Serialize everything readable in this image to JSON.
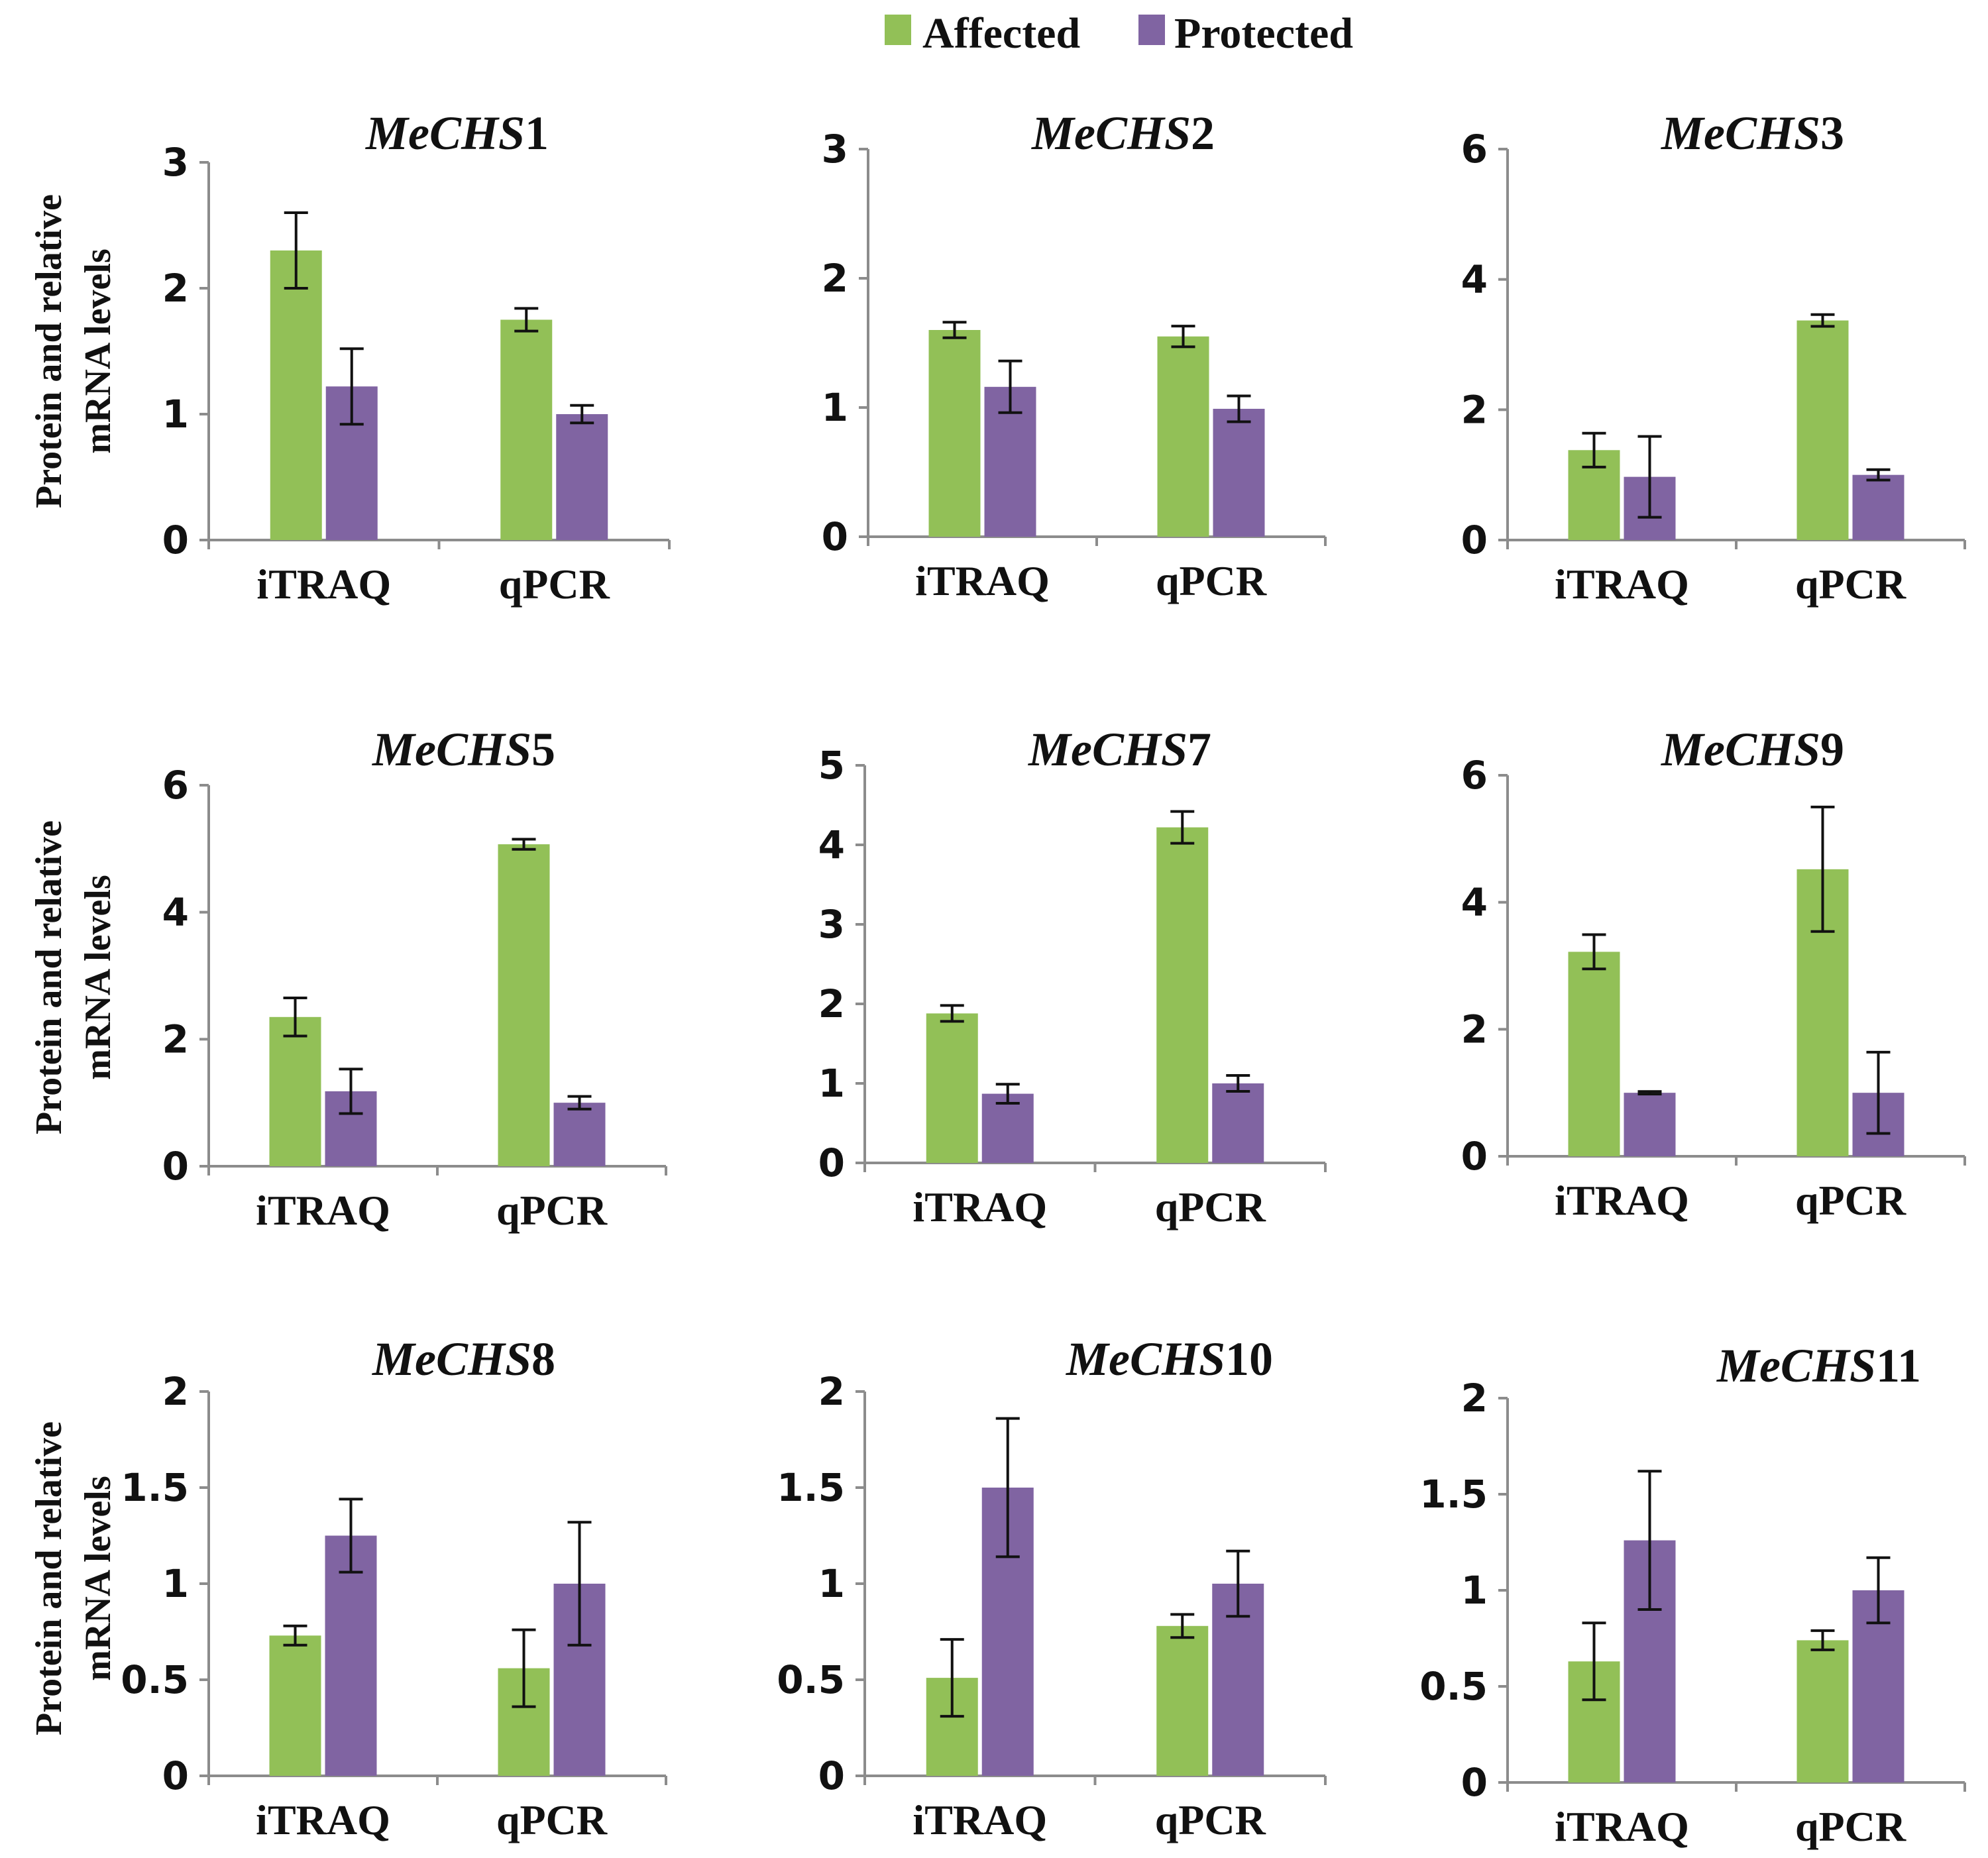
{
  "colors": {
    "affected": "#92c057",
    "protected": "#8064a2"
  },
  "legend": {
    "affected": "Affected",
    "protected": "Protected"
  },
  "ylabel": {
    "line1": "Protein  and relative",
    "line2": "mRNA levels"
  },
  "chart_data": [
    {
      "type": "bar",
      "title_italic": "MeCHS",
      "title_num": "1",
      "categories": [
        "iTRAQ",
        "qPCR"
      ],
      "ylim": [
        0,
        3
      ],
      "yticks": [
        "0",
        "1",
        "2",
        "3"
      ],
      "ytick_values": [
        0,
        1,
        2,
        3
      ],
      "series": [
        {
          "name": "Affected",
          "values": [
            2.3,
            1.75
          ],
          "errors": [
            0.3,
            0.09
          ]
        },
        {
          "name": "Protected",
          "values": [
            1.22,
            1.0
          ],
          "errors": [
            0.3,
            0.07
          ]
        }
      ]
    },
    {
      "type": "bar",
      "title_italic": "MeCHS",
      "title_num": "2",
      "categories": [
        "iTRAQ",
        "qPCR"
      ],
      "ylim": [
        0,
        3
      ],
      "yticks": [
        "0",
        "1",
        "2",
        "3"
      ],
      "ytick_values": [
        0,
        1,
        2,
        3
      ],
      "series": [
        {
          "name": "Affected",
          "values": [
            1.6,
            1.55
          ],
          "errors": [
            0.06,
            0.08
          ]
        },
        {
          "name": "Protected",
          "values": [
            1.16,
            0.99
          ],
          "errors": [
            0.2,
            0.1
          ]
        }
      ]
    },
    {
      "type": "bar",
      "title_italic": "MeCHS",
      "title_num": "3",
      "categories": [
        "iTRAQ",
        "qPCR"
      ],
      "ylim": [
        0,
        6
      ],
      "yticks": [
        "0",
        "2",
        "4",
        "6"
      ],
      "ytick_values": [
        0,
        2,
        4,
        6
      ],
      "series": [
        {
          "name": "Affected",
          "values": [
            1.38,
            3.37
          ],
          "errors": [
            0.26,
            0.09
          ]
        },
        {
          "name": "Protected",
          "values": [
            0.97,
            1.0
          ],
          "errors": [
            0.62,
            0.08
          ]
        }
      ]
    },
    {
      "type": "bar",
      "title_italic": "MeCHS",
      "title_num": "5",
      "categories": [
        "iTRAQ",
        "qPCR"
      ],
      "ylim": [
        0,
        6
      ],
      "yticks": [
        "0",
        "2",
        "4",
        "6"
      ],
      "ytick_values": [
        0,
        2,
        4,
        6
      ],
      "series": [
        {
          "name": "Affected",
          "values": [
            2.35,
            5.07
          ],
          "errors": [
            0.3,
            0.08
          ]
        },
        {
          "name": "Protected",
          "values": [
            1.18,
            1.0
          ],
          "errors": [
            0.35,
            0.1
          ]
        }
      ]
    },
    {
      "type": "bar",
      "title_italic": "MeCHS",
      "title_num": "7",
      "categories": [
        "iTRAQ",
        "qPCR"
      ],
      "ylim": [
        0,
        5
      ],
      "yticks": [
        "0",
        "1",
        "2",
        "3",
        "4",
        "5"
      ],
      "ytick_values": [
        0,
        1,
        2,
        3,
        4,
        5
      ],
      "series": [
        {
          "name": "Affected",
          "values": [
            1.88,
            4.22
          ],
          "errors": [
            0.1,
            0.2
          ]
        },
        {
          "name": "Protected",
          "values": [
            0.87,
            1.0
          ],
          "errors": [
            0.12,
            0.1
          ]
        }
      ]
    },
    {
      "type": "bar",
      "title_italic": "MeCHS",
      "title_num": "9",
      "categories": [
        "iTRAQ",
        "qPCR"
      ],
      "ylim": [
        0,
        6
      ],
      "yticks": [
        "0",
        "2",
        "4",
        "6"
      ],
      "ytick_values": [
        0,
        2,
        4,
        6
      ],
      "series": [
        {
          "name": "Affected",
          "values": [
            3.22,
            4.52
          ],
          "errors": [
            0.27,
            0.98
          ]
        },
        {
          "name": "Protected",
          "values": [
            1.0,
            1.0
          ],
          "errors": [
            0.02,
            0.64
          ]
        }
      ]
    },
    {
      "type": "bar",
      "title_italic": "MeCHS",
      "title_num": "8",
      "categories": [
        "iTRAQ",
        "qPCR"
      ],
      "ylim": [
        0,
        2
      ],
      "yticks": [
        "0",
        "0.5",
        "1",
        "1.5",
        "2"
      ],
      "ytick_values": [
        0,
        0.5,
        1,
        1.5,
        2
      ],
      "series": [
        {
          "name": "Affected",
          "values": [
            0.73,
            0.56
          ],
          "errors": [
            0.05,
            0.2
          ]
        },
        {
          "name": "Protected",
          "values": [
            1.25,
            1.0
          ],
          "errors": [
            0.19,
            0.32
          ]
        }
      ]
    },
    {
      "type": "bar",
      "title_italic": "MeCHS",
      "title_num": "10",
      "categories": [
        "iTRAQ",
        "qPCR"
      ],
      "ylim": [
        0,
        2
      ],
      "yticks": [
        "0",
        "0.5",
        "1",
        "1.5",
        "2"
      ],
      "ytick_values": [
        0,
        0.5,
        1,
        1.5,
        2
      ],
      "series": [
        {
          "name": "Affected",
          "values": [
            0.51,
            0.78
          ],
          "errors": [
            0.2,
            0.06
          ]
        },
        {
          "name": "Protected",
          "values": [
            1.5,
            1.0
          ],
          "errors": [
            0.36,
            0.17
          ]
        }
      ]
    },
    {
      "type": "bar",
      "title_italic": "MeCHS",
      "title_num": "11",
      "categories": [
        "iTRAQ",
        "qPCR"
      ],
      "ylim": [
        0,
        2
      ],
      "yticks": [
        "0",
        "0.5",
        "1",
        "1.5",
        "2"
      ],
      "ytick_values": [
        0,
        0.5,
        1,
        1.5,
        2
      ],
      "series": [
        {
          "name": "Affected",
          "values": [
            0.63,
            0.74
          ],
          "errors": [
            0.2,
            0.05
          ]
        },
        {
          "name": "Protected",
          "values": [
            1.26,
            1.0
          ],
          "errors": [
            0.36,
            0.17
          ]
        }
      ]
    }
  ]
}
